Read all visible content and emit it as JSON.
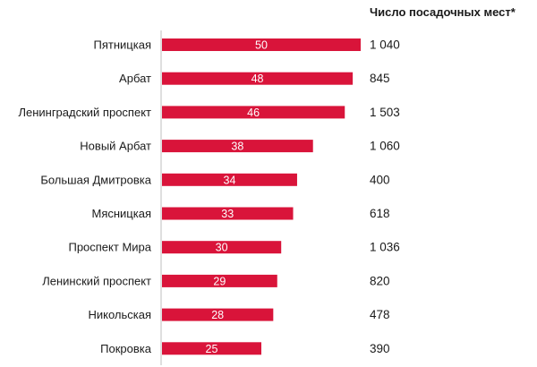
{
  "chart_data": {
    "type": "bar",
    "orientation": "horizontal",
    "categories": [
      "Пятницкая",
      "Арбат",
      "Ленинградский проспект",
      "Новый Арбат",
      "Большая Дмитровка",
      "Мясницкая",
      "Проспект Мира",
      "Ленинский проспект",
      "Никольская",
      "Покровка"
    ],
    "values": [
      50,
      48,
      46,
      38,
      34,
      33,
      30,
      29,
      28,
      25
    ],
    "value_labels": [
      "50",
      "48",
      "46",
      "38",
      "34",
      "33",
      "30",
      "29",
      "28",
      "25"
    ],
    "seats_header": "Число посадочных мест*",
    "seats": [
      "1 040",
      "845",
      "1 503",
      "1 060",
      "400",
      "618",
      "1 036",
      "820",
      "478",
      "390"
    ],
    "xlim": [
      0,
      50
    ],
    "grid": false,
    "colors": {
      "bar": "#d9143a",
      "axis": "#bfbfbf",
      "text": "#1a1a1a",
      "label": "#ffffff"
    }
  }
}
